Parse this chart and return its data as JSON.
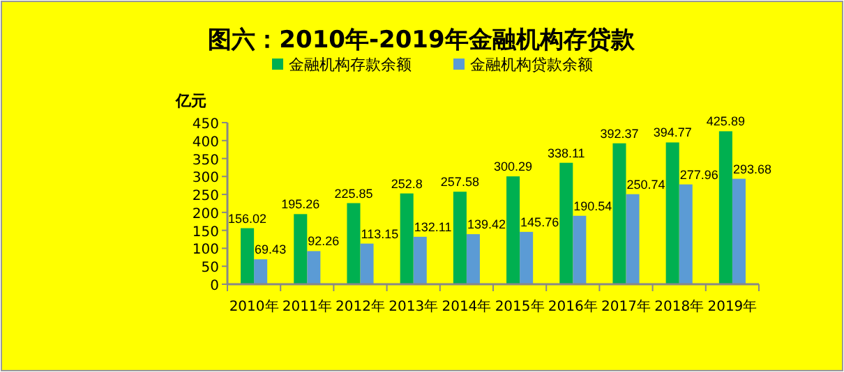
{
  "chart_data": {
    "type": "bar",
    "title": "图六：2010年-2019年金融机构存贷款",
    "ylabel": "亿元",
    "categories": [
      "2010年",
      "2011年",
      "2012年",
      "2013年",
      "2014年",
      "2015年",
      "2016年",
      "2017年",
      "2018年",
      "2019年"
    ],
    "series": [
      {
        "name": "金融机构存款余额",
        "color": "#00b050",
        "values": [
          156.02,
          195.26,
          225.85,
          252.8,
          257.58,
          300.29,
          338.11,
          392.37,
          394.77,
          425.89
        ]
      },
      {
        "name": "金融机构贷款余额",
        "color": "#5b9bd5",
        "values": [
          69.43,
          92.26,
          113.15,
          132.11,
          139.42,
          145.76,
          190.54,
          250.74,
          277.96,
          293.68
        ]
      }
    ],
    "ylim": [
      0,
      450
    ],
    "yticks": [
      0,
      50,
      100,
      150,
      200,
      250,
      300,
      350,
      400,
      450
    ],
    "data_labels": true,
    "legend": "top",
    "grid": false
  }
}
